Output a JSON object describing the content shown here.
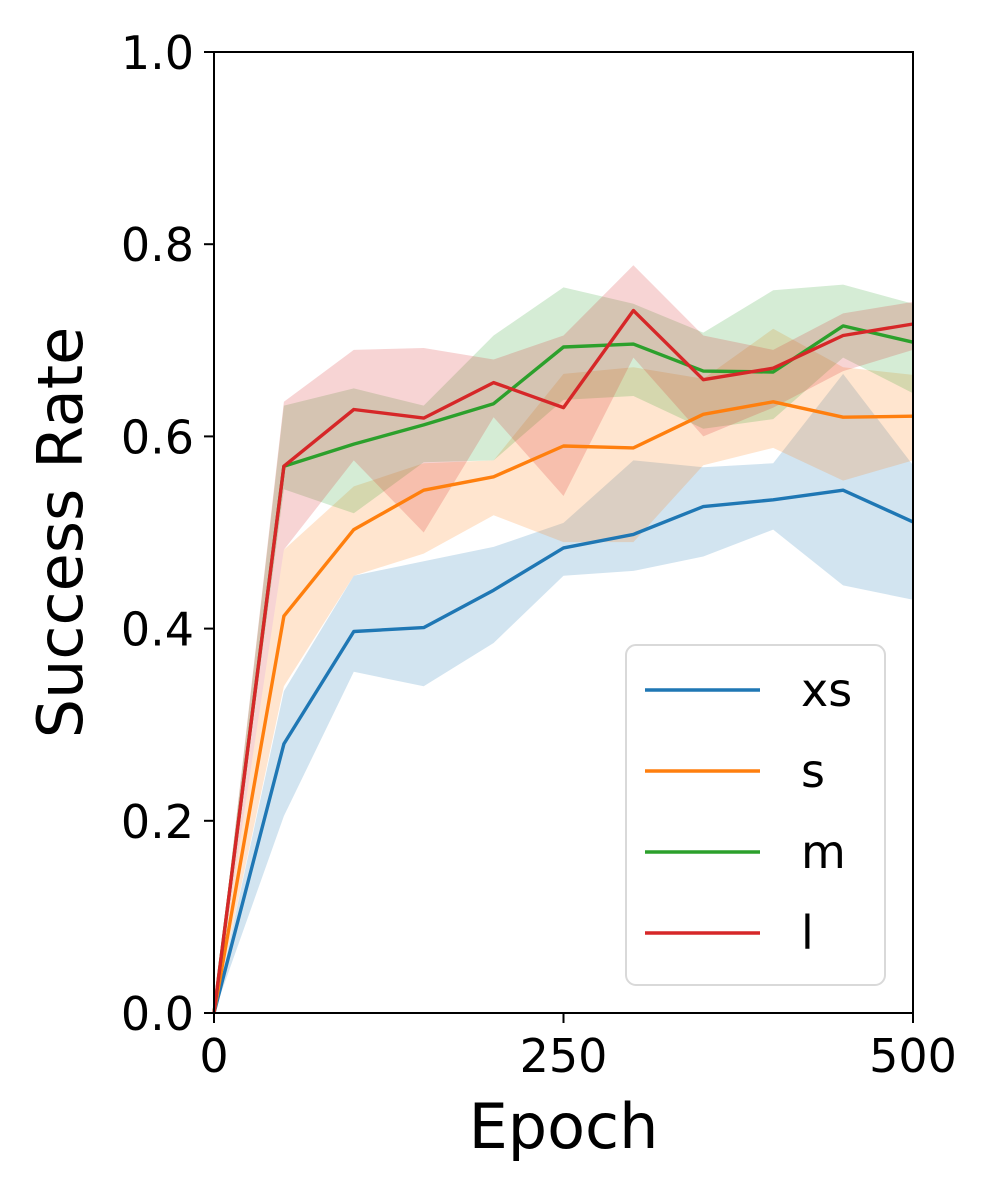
{
  "chart_data": {
    "type": "line",
    "title": "",
    "xlabel": "Epoch",
    "ylabel": "Success Rate",
    "xlim": [
      0,
      500
    ],
    "ylim": [
      0,
      1
    ],
    "xticks": [
      0,
      250,
      500
    ],
    "xtick_labels": [
      "0",
      "250",
      "500"
    ],
    "yticks": [
      0,
      0.2,
      0.4,
      0.6,
      0.8,
      1.0
    ],
    "ytick_labels": [
      "0.0",
      "0.2",
      "0.4",
      "0.6",
      "0.8",
      "1.0"
    ],
    "grid": false,
    "legend_position": "lower-right",
    "x": [
      0,
      50,
      100,
      150,
      200,
      250,
      300,
      350,
      400,
      450,
      500
    ],
    "series": [
      {
        "name": "xs",
        "color": "#1f77b4",
        "values": [
          0.0,
          0.28,
          0.397,
          0.401,
          0.44,
          0.484,
          0.498,
          0.527,
          0.534,
          0.544,
          0.511
        ],
        "lower": [
          0.0,
          0.205,
          0.355,
          0.34,
          0.385,
          0.455,
          0.46,
          0.475,
          0.503,
          0.445,
          0.43
        ],
        "upper": [
          0.0,
          0.335,
          0.455,
          0.47,
          0.485,
          0.51,
          0.575,
          0.568,
          0.572,
          0.665,
          0.57
        ]
      },
      {
        "name": "s",
        "color": "#ff7f0e",
        "values": [
          0.0,
          0.413,
          0.503,
          0.544,
          0.558,
          0.59,
          0.588,
          0.623,
          0.636,
          0.62,
          0.621
        ],
        "lower": [
          0.0,
          0.34,
          0.455,
          0.478,
          0.518,
          0.49,
          0.49,
          0.57,
          0.588,
          0.554,
          0.575
        ],
        "upper": [
          0.0,
          0.482,
          0.548,
          0.572,
          0.575,
          0.665,
          0.672,
          0.66,
          0.712,
          0.672,
          0.664
        ]
      },
      {
        "name": "m",
        "color": "#2ca02c",
        "values": [
          0.0,
          0.569,
          0.592,
          0.612,
          0.634,
          0.693,
          0.696,
          0.668,
          0.667,
          0.715,
          0.698
        ],
        "lower": [
          0.0,
          0.545,
          0.52,
          0.573,
          0.575,
          0.638,
          0.642,
          0.608,
          0.618,
          0.682,
          0.645
        ],
        "upper": [
          0.0,
          0.632,
          0.65,
          0.632,
          0.705,
          0.755,
          0.738,
          0.708,
          0.752,
          0.758,
          0.738
        ]
      },
      {
        "name": "l",
        "color": "#d62728",
        "values": [
          0.0,
          0.569,
          0.628,
          0.619,
          0.656,
          0.63,
          0.731,
          0.659,
          0.671,
          0.705,
          0.717
        ],
        "lower": [
          0.0,
          0.482,
          0.575,
          0.5,
          0.62,
          0.538,
          0.682,
          0.6,
          0.63,
          0.668,
          0.69
        ],
        "upper": [
          0.0,
          0.636,
          0.69,
          0.692,
          0.68,
          0.705,
          0.778,
          0.705,
          0.69,
          0.728,
          0.74
        ]
      }
    ]
  }
}
